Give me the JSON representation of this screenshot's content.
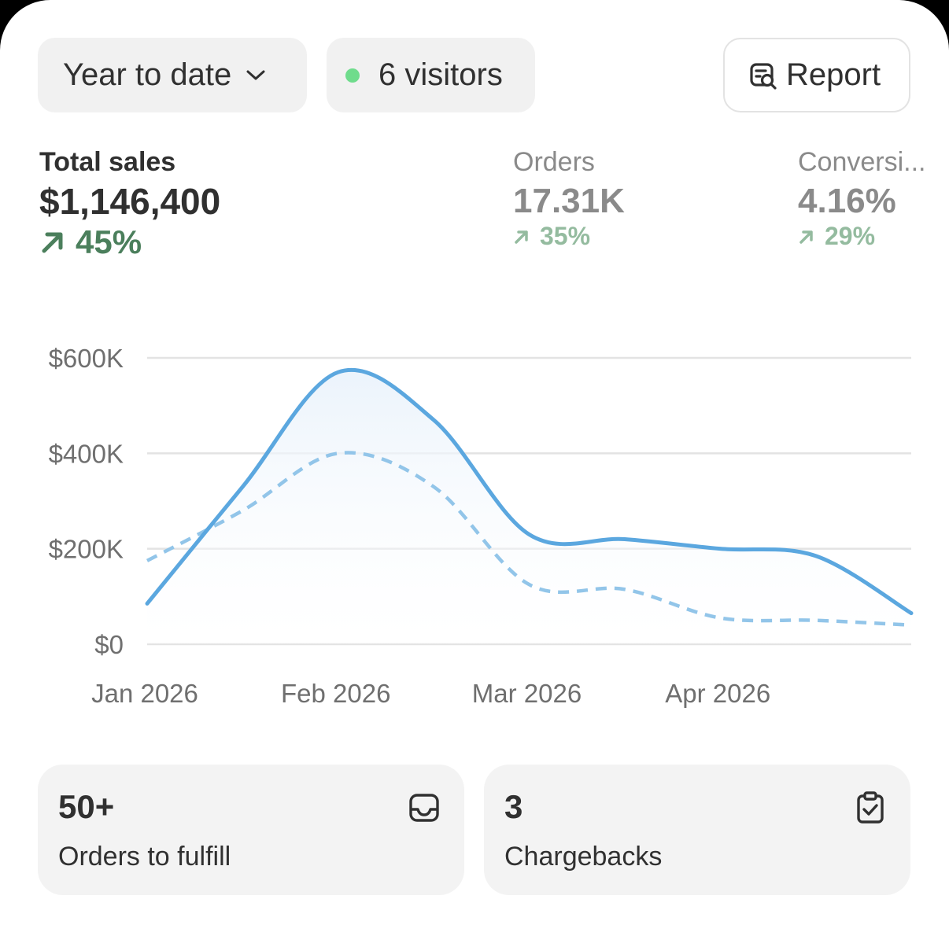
{
  "toolbar": {
    "range_label": "Year to date",
    "visitors_label": "6 visitors",
    "visitors_dot_color": "#6fdc8c",
    "report_label": "Report"
  },
  "metrics": [
    {
      "label": "Total sales",
      "value": "$1,146,400",
      "delta": "45%",
      "trend": "up",
      "active": true
    },
    {
      "label": "Orders",
      "value": "17.31K",
      "delta": "35%",
      "trend": "up",
      "active": false
    },
    {
      "label": "Conversi...",
      "value": "4.16%",
      "delta": "29%",
      "trend": "up",
      "active": false
    }
  ],
  "chart_data": {
    "type": "line",
    "x": [
      "Jan 1",
      "Jan 15",
      "Feb 1",
      "Feb 15",
      "Mar 1",
      "Mar 15",
      "Apr 1",
      "Apr 15",
      "May 1"
    ],
    "x_tick_labels": [
      "Jan 2026",
      "Feb 2026",
      "Mar 2026",
      "Apr 2026"
    ],
    "y_tick_labels": [
      "$600K",
      "$400K",
      "$200K",
      "$0"
    ],
    "ylim": [
      0,
      600000
    ],
    "grid": true,
    "series": [
      {
        "style": "solid",
        "color": "#5ba7df",
        "values": [
          85000,
          330000,
          570000,
          470000,
          230000,
          220000,
          200000,
          185000,
          65000
        ]
      },
      {
        "style": "dashed",
        "color": "#92c5e9",
        "values": [
          175000,
          280000,
          400000,
          330000,
          125000,
          115000,
          55000,
          50000,
          40000
        ]
      }
    ]
  },
  "cards": [
    {
      "number": "50+",
      "label": "Orders to fulfill",
      "icon": "inbox-icon"
    },
    {
      "number": "3",
      "label": "Chargebacks",
      "icon": "clipboard-check-icon"
    }
  ]
}
